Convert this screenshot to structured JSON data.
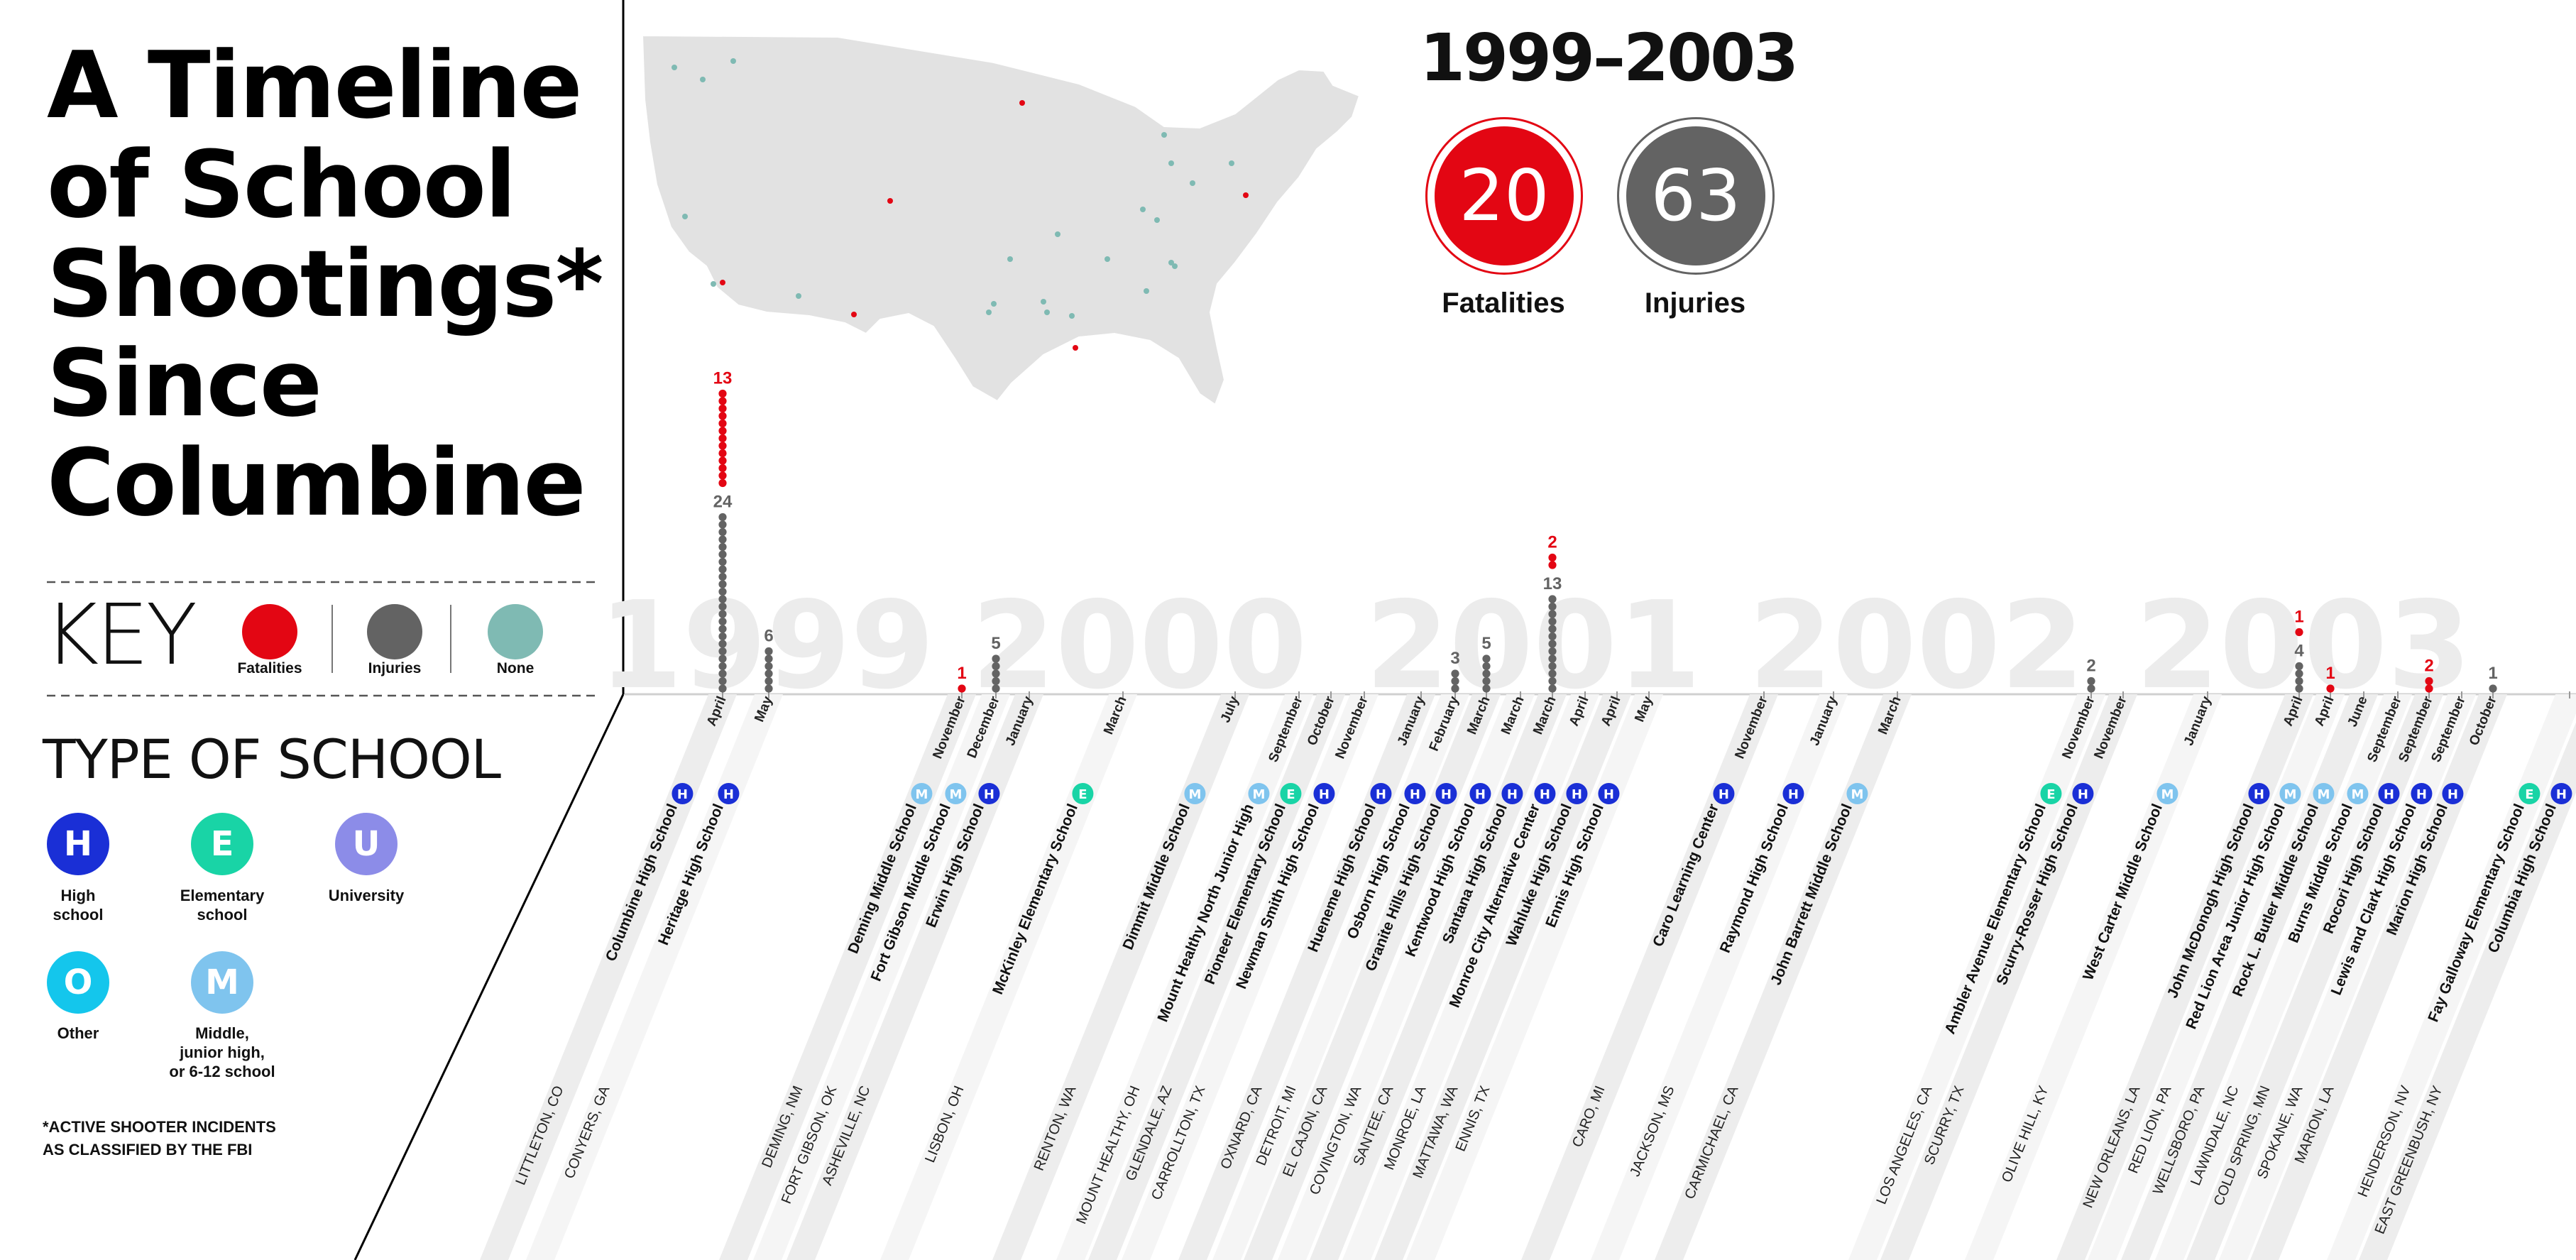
{
  "title": "A Timeline of School Shootings*\nSince Columbine",
  "key": {
    "label": "KEY",
    "items": [
      {
        "label": "Fatalities",
        "color": "#e30613"
      },
      {
        "label": "Injuries",
        "color": "#636363"
      },
      {
        "label": "None",
        "color": "#7fbab3"
      }
    ]
  },
  "school_types": {
    "title": "TYPE OF SCHOOL",
    "items": [
      {
        "code": "H",
        "label": "High\nschool",
        "color": "#1a2fd6"
      },
      {
        "code": "E",
        "label": "Elementary\nschool",
        "color": "#19d4a6"
      },
      {
        "code": "U",
        "label": "University",
        "color": "#8c8ce8"
      },
      {
        "code": "O",
        "label": "Other",
        "color": "#14c6ec"
      },
      {
        "code": "M",
        "label": "Middle,\njunior high,\nor 6-12 school",
        "color": "#7fc4ee"
      }
    ]
  },
  "footnote": "*ACTIVE SHOOTER INCIDENTS\nAS CLASSIFIED BY THE FBI",
  "summary": {
    "period": "1999–2003",
    "fatalities": {
      "value": "20",
      "label": "Fatalities",
      "color": "#e30613"
    },
    "injuries": {
      "value": "63",
      "label": "Injuries",
      "color": "#636363"
    }
  },
  "chart_data": {
    "type": "scatter",
    "title": "",
    "xlabel": "",
    "ylabel": "",
    "years": [
      "1999",
      "2000",
      "2001",
      "2002",
      "2003"
    ],
    "series": [
      {
        "name": "Fatalities",
        "color": "#e30613"
      },
      {
        "name": "Injuries",
        "color": "#636363"
      }
    ],
    "incidents": [
      {
        "month": "April",
        "school": "Columbine High School",
        "location": "LITTLETON, CO",
        "type": "H",
        "fatalities": 13,
        "injuries": 24
      },
      {
        "month": "May",
        "school": "Heritage High School",
        "location": "CONYERS, GA",
        "type": "H",
        "fatalities": 0,
        "injuries": 6
      },
      {
        "month": "November",
        "school": "Deming Middle School",
        "location": "DEMING, NM",
        "type": "M",
        "fatalities": 1,
        "injuries": 0
      },
      {
        "month": "December",
        "school": "Fort Gibson Middle School",
        "location": "FORT GIBSON, OK",
        "type": "M",
        "fatalities": 0,
        "injuries": 5
      },
      {
        "month": "January",
        "school": "Erwin High School",
        "location": "ASHEVILLE, NC",
        "type": "H",
        "fatalities": 0,
        "injuries": 0
      },
      {
        "month": "March",
        "school": "McKinley Elementary School",
        "location": "LISBON, OH",
        "type": "E",
        "fatalities": 0,
        "injuries": 0
      },
      {
        "month": "July",
        "school": "Dimmit Middle School",
        "location": "RENTON, WA",
        "type": "M",
        "fatalities": 0,
        "injuries": 0
      },
      {
        "month": "September",
        "school": "Mount Healthy North Junior High",
        "location": "MOUNT HEALTHY, OH",
        "type": "M",
        "fatalities": 0,
        "injuries": 0
      },
      {
        "month": "October",
        "school": "Pioneer Elementary School",
        "location": "GLENDALE, AZ",
        "type": "E",
        "fatalities": 0,
        "injuries": 0
      },
      {
        "month": "November",
        "school": "Newman Smith High School",
        "location": "CARROLLTON, TX",
        "type": "H",
        "fatalities": 0,
        "injuries": 0
      },
      {
        "month": "January",
        "school": "Hueneme High School",
        "location": "OXNARD, CA",
        "type": "H",
        "fatalities": 0,
        "injuries": 0
      },
      {
        "month": "February",
        "school": "Osborn High School",
        "location": "DETROIT, MI",
        "type": "H",
        "fatalities": 0,
        "injuries": 3
      },
      {
        "month": "March",
        "school": "Granite Hills High School",
        "location": "EL CAJON, CA",
        "type": "H",
        "fatalities": 0,
        "injuries": 5
      },
      {
        "month": "March",
        "school": "Kentwood High School",
        "location": "COVINGTON, WA",
        "type": "H",
        "fatalities": 0,
        "injuries": 0
      },
      {
        "month": "March",
        "school": "Santana High School",
        "location": "SANTEE, CA",
        "type": "H",
        "fatalities": 2,
        "injuries": 13
      },
      {
        "month": "April",
        "school": "Monroe City Alternative Center",
        "location": "MONROE, LA",
        "type": "H",
        "fatalities": 0,
        "injuries": 0
      },
      {
        "month": "April",
        "school": "Wahluke High School",
        "location": "MATTAWA, WA",
        "type": "H",
        "fatalities": 0,
        "injuries": 0
      },
      {
        "month": "May",
        "school": "Ennis High School",
        "location": "ENNIS, TX",
        "type": "H",
        "fatalities": 0,
        "injuries": 0
      },
      {
        "month": "November",
        "school": "Caro Learning Center",
        "location": "CARO, MI",
        "type": "H",
        "fatalities": 0,
        "injuries": 0
      },
      {
        "month": "January",
        "school": "Raymond High School",
        "location": "JACKSON, MS",
        "type": "H",
        "fatalities": 0,
        "injuries": 0
      },
      {
        "month": "March",
        "school": "John Barrett Middle School",
        "location": "CARMICHAEL, CA",
        "type": "M",
        "fatalities": 0,
        "injuries": 0
      },
      {
        "month": "November",
        "school": "Ambler Avenue Elementary School",
        "location": "LOS ANGELES, CA",
        "type": "E",
        "fatalities": 0,
        "injuries": 2
      },
      {
        "month": "November",
        "school": "Scurry-Rosser High School",
        "location": "SCURRY, TX",
        "type": "H",
        "fatalities": 0,
        "injuries": 0
      },
      {
        "month": "January",
        "school": "West Carter Middle School",
        "location": "OLIVE HILL, KY",
        "type": "M",
        "fatalities": 0,
        "injuries": 0
      },
      {
        "month": "April",
        "school": "John McDonogh High School",
        "location": "NEW ORLEANS, LA",
        "type": "H",
        "fatalities": 1,
        "injuries": 4
      },
      {
        "month": "April",
        "school": "Red Lion Area Junior High School",
        "location": "RED LION, PA",
        "type": "M",
        "fatalities": 1,
        "injuries": 0
      },
      {
        "month": "June",
        "school": "Rock L. Butler Middle School",
        "location": "WELLSBORO, PA",
        "type": "M",
        "fatalities": 0,
        "injuries": 0
      },
      {
        "month": "September",
        "school": "Burns Middle School",
        "location": "LAWNDALE, NC",
        "type": "M",
        "fatalities": 0,
        "injuries": 0
      },
      {
        "month": "September",
        "school": "Rocori High School",
        "location": "COLD SPRING, MN",
        "type": "H",
        "fatalities": 2,
        "injuries": 0
      },
      {
        "month": "September",
        "school": "Lewis and Clark High School",
        "location": "SPOKANE, WA",
        "type": "H",
        "fatalities": 0,
        "injuries": 0
      },
      {
        "month": "October",
        "school": "Marion High School",
        "location": "MARION, LA",
        "type": "H",
        "fatalities": 0,
        "injuries": 1
      },
      {
        "month": "",
        "school": "Fay Galloway Elementary School",
        "location": "HENDERSON, NV",
        "type": "E",
        "fatalities": 0,
        "injuries": 0
      },
      {
        "month": "January",
        "school": "Columbia High School",
        "location": "EAST GREENBUSH, NY",
        "type": "H",
        "fatalities": 0,
        "injuries": 0
      }
    ]
  }
}
